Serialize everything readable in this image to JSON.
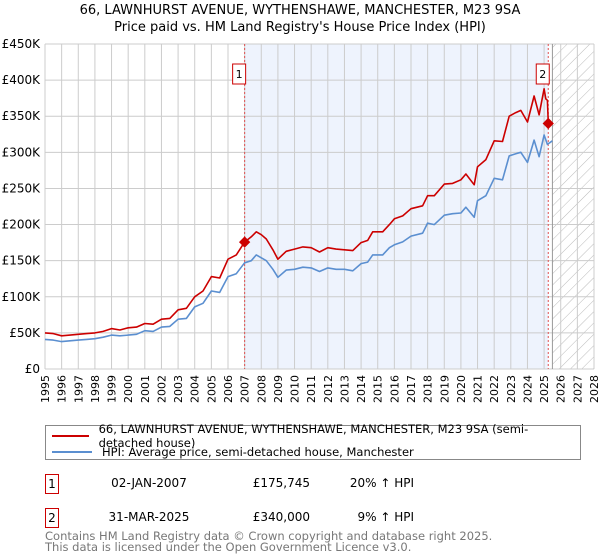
{
  "chart_data": {
    "type": "line",
    "title": "66, LAWNHURST AVENUE, WYTHENSHAWE, MANCHESTER, M23 9SA",
    "subtitle": "Price paid vs. HM Land Registry's House Price Index (HPI)",
    "xlim": [
      1995,
      2028
    ],
    "ylim": [
      0,
      450000
    ],
    "yticks": [
      {
        "v": 0,
        "label": "£0"
      },
      {
        "v": 50000,
        "label": "£50K"
      },
      {
        "v": 100000,
        "label": "£100K"
      },
      {
        "v": 150000,
        "label": "£150K"
      },
      {
        "v": 200000,
        "label": "£200K"
      },
      {
        "v": 250000,
        "label": "£250K"
      },
      {
        "v": 300000,
        "label": "£300K"
      },
      {
        "v": 350000,
        "label": "£350K"
      },
      {
        "v": 400000,
        "label": "£400K"
      },
      {
        "v": 450000,
        "label": "£450K"
      }
    ],
    "xticks": [
      "1995",
      "1996",
      "1997",
      "1998",
      "1999",
      "2000",
      "2001",
      "2002",
      "2003",
      "2004",
      "2005",
      "2006",
      "2007",
      "2008",
      "2009",
      "2010",
      "2011",
      "2012",
      "2013",
      "2014",
      "2015",
      "2016",
      "2017",
      "2018",
      "2019",
      "2020",
      "2021",
      "2022",
      "2023",
      "2024",
      "2025",
      "2026",
      "2027",
      "2028"
    ],
    "grid": true,
    "shaded_range": [
      2007.0,
      2025.25
    ],
    "hatched_from": 2025.5,
    "series": [
      {
        "name": "66, LAWNHURST AVENUE, WYTHENSHAWE, MANCHESTER, M23 9SA (semi-detached house)",
        "color": "#cc0000",
        "x": [
          1995,
          1995.5,
          1996,
          1996.5,
          1997,
          1997.5,
          1998,
          1998.5,
          1999,
          1999.5,
          2000,
          2000.5,
          2001,
          2001.5,
          2002,
          2002.5,
          2003,
          2003.5,
          2004,
          2004.5,
          2005,
          2005.5,
          2006,
          2006.5,
          2007,
          2007.4,
          2007.7,
          2008,
          2008.3,
          2008.7,
          2009,
          2009.5,
          2010,
          2010.5,
          2011,
          2011.5,
          2012,
          2012.5,
          2013,
          2013.5,
          2014,
          2014.4,
          2014.7,
          2015.3,
          2015.7,
          2016,
          2016.5,
          2017,
          2017.7,
          2018,
          2018.4,
          2019,
          2019.5,
          2020,
          2020.3,
          2020.8,
          2021,
          2021.5,
          2022,
          2022.5,
          2022.9,
          2023.3,
          2023.6,
          2024,
          2024.4,
          2024.7,
          2025.0,
          2025.1,
          2025.2,
          2025.25
        ],
        "y": [
          50000,
          49000,
          46000,
          47000,
          48000,
          49000,
          50000,
          52000,
          56000,
          54000,
          57000,
          58000,
          63000,
          62000,
          69000,
          70000,
          82000,
          84000,
          100000,
          108000,
          128000,
          126000,
          152000,
          158000,
          175745,
          183000,
          190000,
          186000,
          180000,
          165000,
          152000,
          163000,
          166000,
          169000,
          168000,
          162000,
          168000,
          166000,
          165000,
          164000,
          175000,
          178000,
          190000,
          190000,
          200000,
          208000,
          212000,
          222000,
          226000,
          240000,
          240000,
          256000,
          257000,
          262000,
          270000,
          255000,
          280000,
          290000,
          316000,
          315000,
          350000,
          355000,
          358000,
          342000,
          378000,
          352000,
          388000,
          374000,
          372000,
          340000
        ]
      },
      {
        "name": "HPI: Average price, semi-detached house, Manchester",
        "color": "#5b8fd0",
        "x": [
          1995,
          1995.5,
          1996,
          1996.5,
          1997,
          1997.5,
          1998,
          1998.5,
          1999,
          1999.5,
          2000,
          2000.5,
          2001,
          2001.5,
          2002,
          2002.5,
          2003,
          2003.5,
          2004,
          2004.5,
          2005,
          2005.5,
          2006,
          2006.5,
          2007,
          2007.4,
          2007.7,
          2008,
          2008.3,
          2008.7,
          2009,
          2009.5,
          2010,
          2010.5,
          2011,
          2011.5,
          2012,
          2012.5,
          2013,
          2013.5,
          2014,
          2014.4,
          2014.7,
          2015.3,
          2015.7,
          2016,
          2016.5,
          2017,
          2017.7,
          2018,
          2018.4,
          2019,
          2019.5,
          2020,
          2020.3,
          2020.8,
          2021,
          2021.5,
          2022,
          2022.5,
          2022.9,
          2023.3,
          2023.6,
          2024,
          2024.4,
          2024.7,
          2025.0,
          2025.2,
          2025.5
        ],
        "y": [
          41000,
          40000,
          38000,
          39000,
          40000,
          41000,
          42000,
          44000,
          47000,
          46000,
          47000,
          48000,
          53000,
          52000,
          58000,
          59000,
          69000,
          70000,
          86000,
          91000,
          108000,
          106000,
          128000,
          132000,
          147000,
          150000,
          158000,
          154000,
          150000,
          138000,
          127000,
          137000,
          138000,
          141000,
          140000,
          135000,
          140000,
          138000,
          138000,
          136000,
          146000,
          148000,
          158000,
          158000,
          168000,
          172000,
          176000,
          184000,
          188000,
          202000,
          200000,
          213000,
          215000,
          216000,
          224000,
          210000,
          233000,
          240000,
          264000,
          262000,
          295000,
          298000,
          300000,
          286000,
          317000,
          294000,
          324000,
          311000,
          316000
        ]
      }
    ],
    "markers": [
      {
        "label": "1",
        "x": 2007.0,
        "y": 175745
      },
      {
        "label": "2",
        "x": 2025.25,
        "y": 340000
      }
    ]
  },
  "legend": [
    "66, LAWNHURST AVENUE, WYTHENSHAWE, MANCHESTER, M23 9SA (semi-detached house)",
    "HPI: Average price, semi-detached house, Manchester"
  ],
  "transactions": [
    {
      "num": "1",
      "date": "02-JAN-2007",
      "price": "£175,745",
      "hpi": "20% ↑ HPI"
    },
    {
      "num": "2",
      "date": "31-MAR-2025",
      "price": "£340,000",
      "hpi": "9% ↑ HPI"
    }
  ],
  "footer": {
    "line1": "Contains HM Land Registry data © Crown copyright and database right 2025.",
    "line2": "This data is licensed under the Open Government Licence v3.0."
  }
}
